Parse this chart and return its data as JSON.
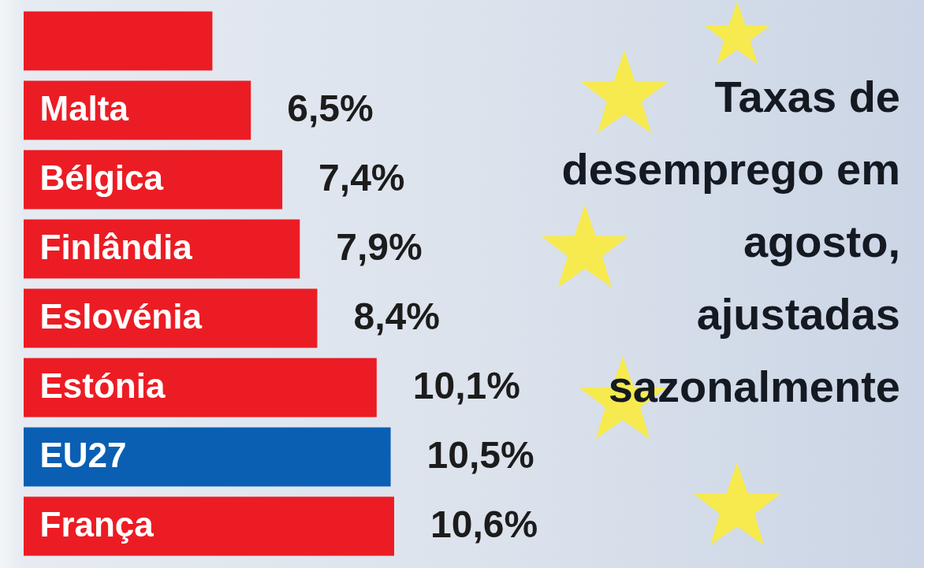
{
  "chart_data": {
    "type": "bar",
    "orientation": "horizontal",
    "title": "Taxas de desemprego em agosto, ajustadas sazonalmente",
    "categories": [
      null,
      "Malta",
      "Bélgica",
      "Finlândia",
      "Eslovénia",
      "Estónia",
      "EU27",
      "França"
    ],
    "values": [
      5.4,
      6.5,
      7.4,
      7.9,
      8.4,
      10.1,
      10.5,
      10.6
    ],
    "colors": [
      "#ec1c24",
      "#ec1c24",
      "#ec1c24",
      "#ec1c24",
      "#ec1c24",
      "#ec1c24",
      "#0b5fb3",
      "#ec1c24"
    ],
    "value_labels": [
      null,
      "6,5%",
      "7,4%",
      "7,9%",
      "8,4%",
      "10,1%",
      "10,5%",
      "10,6%"
    ]
  }
}
